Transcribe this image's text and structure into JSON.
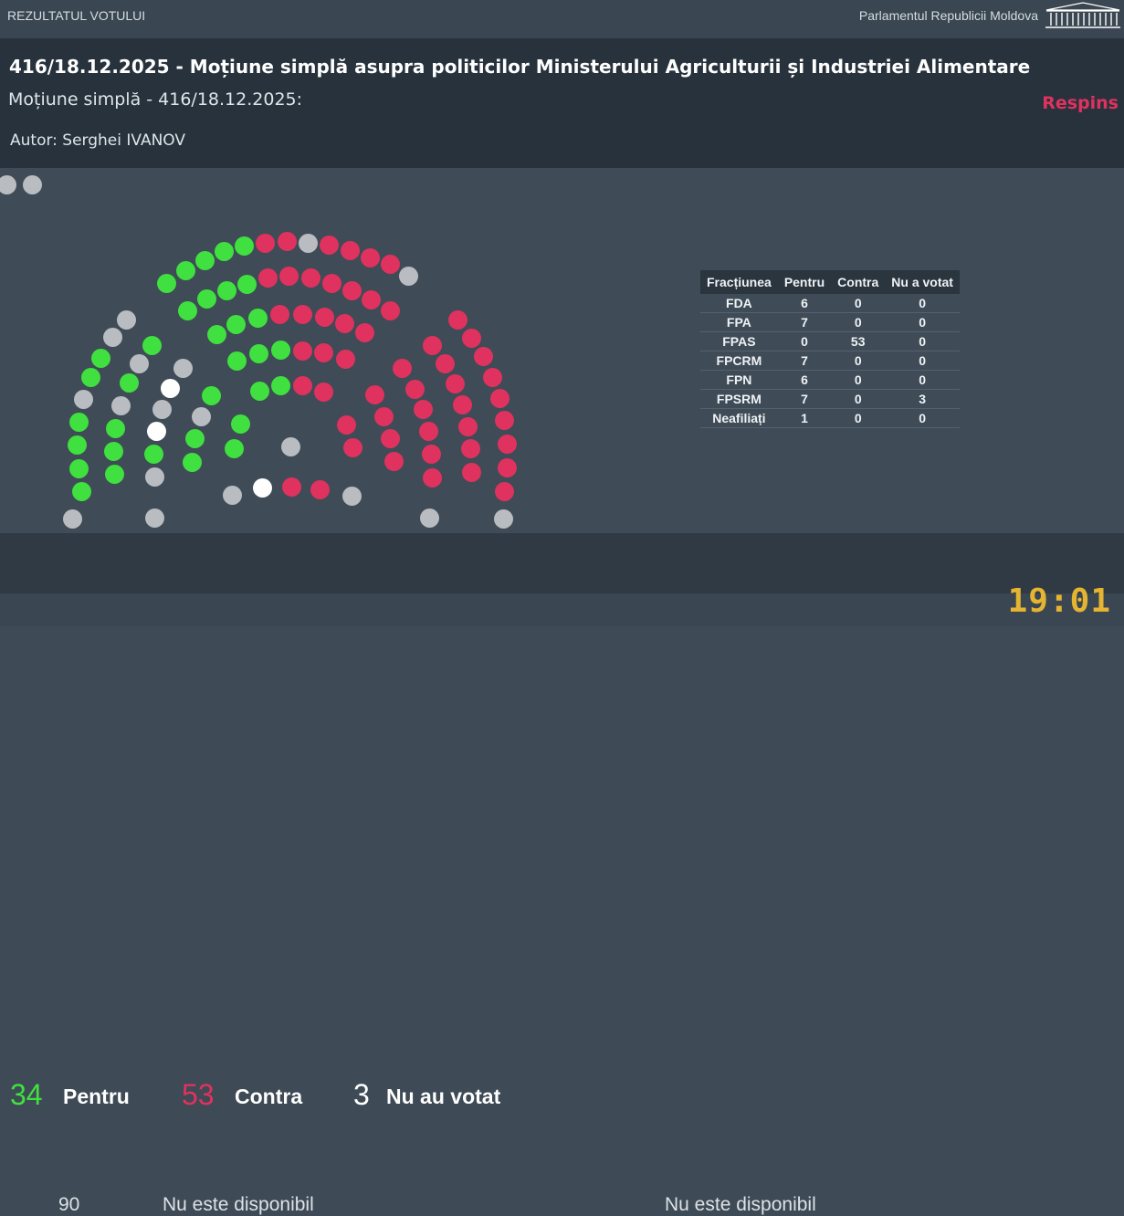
{
  "topbar": {
    "left": "REZULTATUL VOTULUI",
    "right": "Parlamentul Republicii Moldova"
  },
  "header": {
    "title": "416/18.12.2025 - Moțiune simplă asupra politicilor Ministerului Agriculturii și Industriei Alimentare",
    "subtitle": "Moțiune simplă - 416/18.12.2025:",
    "status": "Respins",
    "author": "Autor: Serghei IVANOV"
  },
  "colors": {
    "pentru": "#3fe03f",
    "contra": "#e0325e",
    "absent": "#b9bdc1",
    "nu_a_votat": "#ffffff",
    "accent": "#e5b431"
  },
  "table": {
    "headers": [
      "Fracțiunea",
      "Pentru",
      "Contra",
      "Nu a votat"
    ],
    "rows": [
      [
        "FDA",
        "6",
        "0",
        "0"
      ],
      [
        "FPA",
        "7",
        "0",
        "0"
      ],
      [
        "FPAS",
        "0",
        "53",
        "0"
      ],
      [
        "FPCRM",
        "7",
        "0",
        "0"
      ],
      [
        "FPN",
        "6",
        "0",
        "0"
      ],
      [
        "FPSRM",
        "7",
        "0",
        "3"
      ],
      [
        "Neafiliați",
        "1",
        "0",
        "0"
      ]
    ]
  },
  "tally": {
    "pentru_count": "34",
    "pentru_label": "Pentru",
    "contra_count": "53",
    "contra_label": "Contra",
    "nuvotat_count": "3",
    "nuvotat_label": "Nu au votat"
  },
  "footer": {
    "present_count": "90",
    "mic_status": "Nu este disponibil",
    "list_status": "Nu este disponibil",
    "clock": "19:01"
  }
}
